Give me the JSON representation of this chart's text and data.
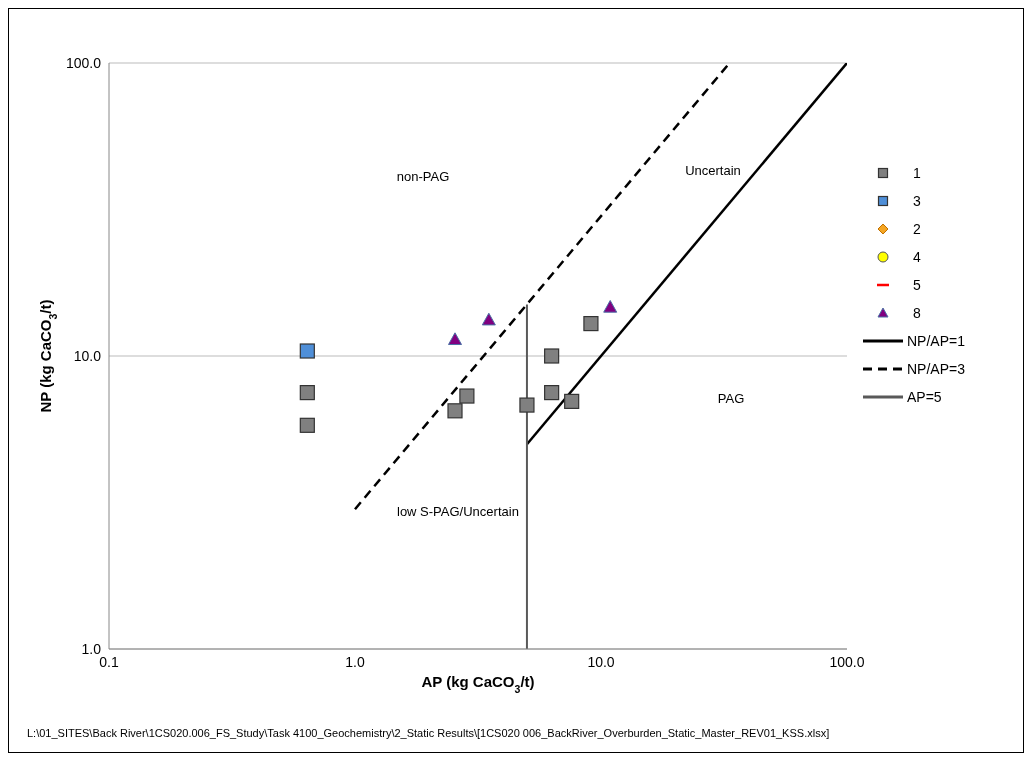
{
  "chart_data": {
    "type": "scatter",
    "xlabel": "AP (kg CaCO$_{3}$/t)",
    "ylabel": "NP (kg CaCO$_{3}$/t)",
    "log": "xy",
    "xlim": [
      0.1,
      100
    ],
    "ylim": [
      1,
      100
    ],
    "xticks": [
      {
        "value": 0.1,
        "label": "0.1"
      },
      {
        "value": 1,
        "label": "1.0"
      },
      {
        "value": 10,
        "label": "10.0"
      },
      {
        "value": 100,
        "label": "100.0"
      }
    ],
    "yticks": [
      {
        "value": 1,
        "label": "1.0"
      },
      {
        "value": 10,
        "label": "10.0"
      },
      {
        "value": 100,
        "label": "100.0"
      }
    ],
    "grid": "y",
    "legend": "right",
    "series": [
      {
        "name": "1",
        "color": "#808080",
        "marker": "square",
        "x": [
          0.64,
          0.64,
          2.55,
          2.85,
          5.0,
          6.3,
          6.3,
          7.6,
          9.1
        ],
        "values": [
          7.5,
          5.8,
          6.5,
          7.3,
          6.8,
          10.0,
          7.5,
          7.0,
          12.9
        ]
      },
      {
        "name": "3",
        "color": "#4f8fd8",
        "marker": "square",
        "x": [
          0.64
        ],
        "values": [
          10.4
        ]
      },
      {
        "name": "2",
        "color": "#f5a623",
        "marker": "diamond"
      },
      {
        "name": "4",
        "color": "#ffff00",
        "marker": "circle"
      },
      {
        "name": "5",
        "color": "#ff0000",
        "type": "line"
      },
      {
        "name": "8",
        "color": "#800080",
        "marker": "triangle",
        "x": [
          2.55,
          3.5,
          10.9
        ],
        "values": [
          11.4,
          13.3,
          14.7
        ]
      },
      {
        "name": "NP/AP=1",
        "type": "line",
        "color": "#000000",
        "line_style": "solid",
        "marker": "none",
        "x": [
          5,
          100
        ],
        "values": [
          5,
          100
        ]
      },
      {
        "name": "NP/AP=3",
        "type": "line",
        "color": "#000000",
        "line_style": "dashed",
        "marker": "none",
        "x": [
          1,
          33.3
        ],
        "values": [
          3,
          100
        ]
      },
      {
        "name": "AP=5",
        "type": "line",
        "color": "#595959",
        "line_style": "solid",
        "marker": "none",
        "x": [
          5,
          5
        ],
        "values": [
          1,
          15
        ]
      }
    ],
    "annotations": [
      "non-PAG",
      "Uncertain",
      "PAG",
      "low S-PAG/Uncertain",
      "L:\\01_SITES\\Back River\\1CS020.006_FS_Study\\Task  4100_Geochemistry\\2_Static  Results\\[1CS020  006_BackRiver_Overburden_Static_Master_REV01_KSS.xlsx]"
    ]
  }
}
